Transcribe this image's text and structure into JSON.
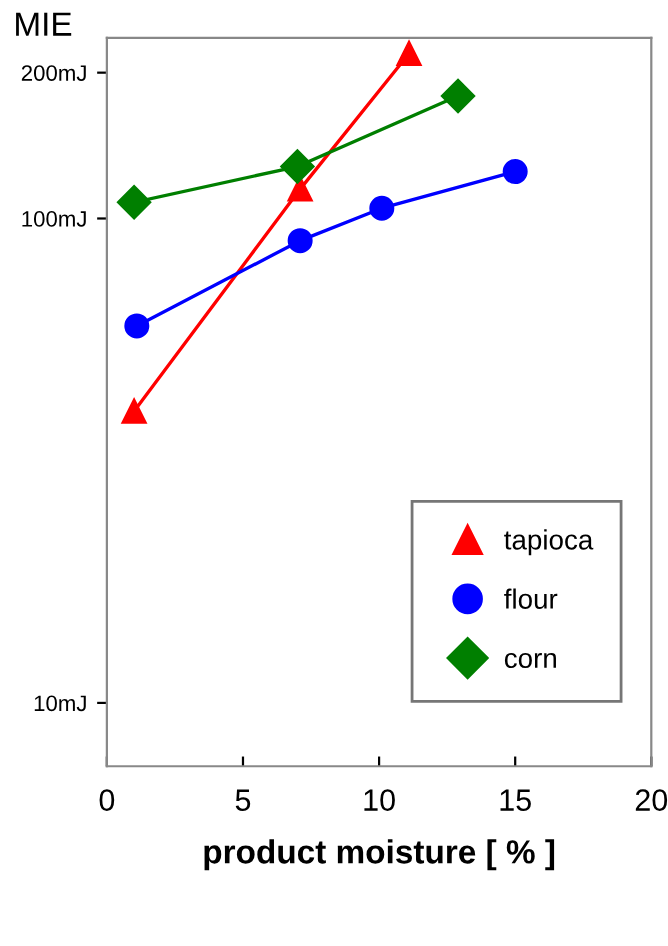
{
  "chart_data": {
    "type": "line",
    "ylabel": "MIE",
    "xlabel": "product moisture [ % ]",
    "log": "y",
    "xlim": [
      0,
      20
    ],
    "xticks": [
      0,
      5,
      10,
      15,
      20
    ],
    "ylim": [
      7.4,
      236
    ],
    "yticks": [
      {
        "value": 10,
        "label": "10mJ"
      },
      {
        "value": 100,
        "label": "100mJ"
      },
      {
        "value": 200,
        "label": "200mJ"
      }
    ],
    "grid": false,
    "legend": "bottom right",
    "line_style": "solid",
    "series": [
      {
        "name": "tapioca",
        "color": "#ff0000",
        "marker": "triangle",
        "x": [
          1.0,
          7.1,
          11.1
        ],
        "values": [
          40,
          115,
          219
        ]
      },
      {
        "name": "flour",
        "color": "#0000ff",
        "marker": "circle",
        "x": [
          1.1,
          7.1,
          10.1,
          15.0
        ],
        "values": [
          60,
          90,
          105,
          125
        ]
      },
      {
        "name": "corn",
        "color": "#007f00",
        "marker": "diamond",
        "x": [
          1.0,
          7.0,
          12.9
        ],
        "values": [
          108,
          128,
          179
        ]
      }
    ]
  }
}
